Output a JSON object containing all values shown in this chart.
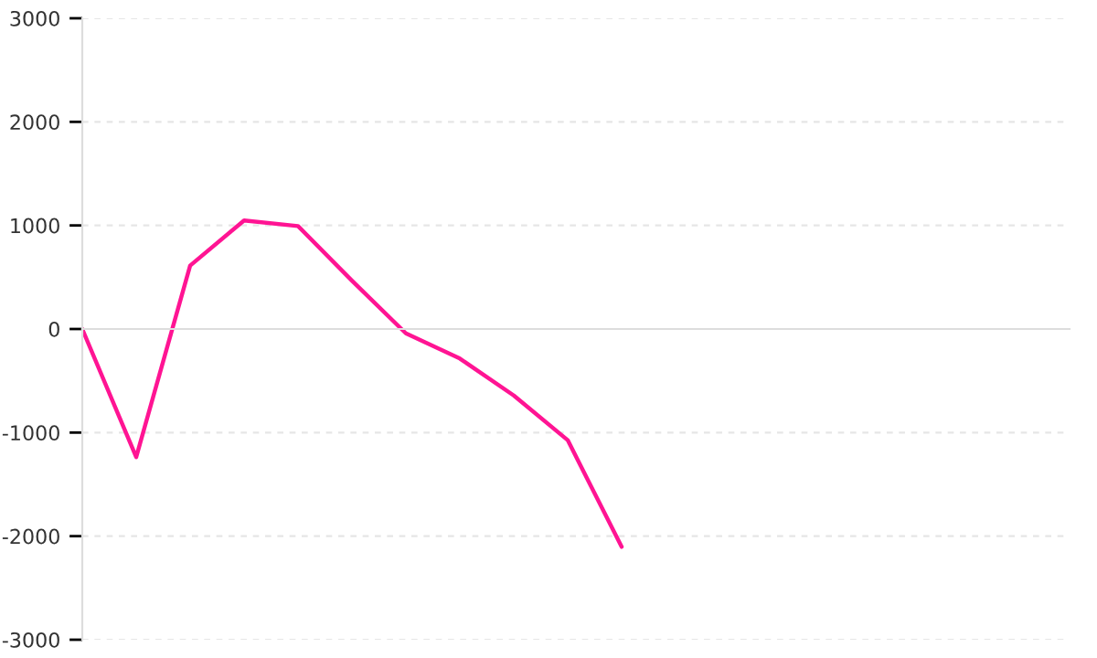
{
  "chart_data": {
    "type": "line",
    "categories": [
      null,
      null,
      null,
      null,
      null,
      null,
      null,
      null,
      null,
      null,
      null
    ],
    "series": [
      {
        "color": "#ff1493",
        "values": [
          0,
          -1236,
          612,
          1048,
          994,
          467,
          -42,
          -285,
          -642,
          -1073,
          -2103
        ]
      }
    ],
    "ylim": [
      -3000,
      3000
    ],
    "yticks": [
      -3000,
      -2000,
      -1000,
      0,
      1000,
      2000,
      3000
    ],
    "grid": "y",
    "tick_labels": "y",
    "marker": "none",
    "line_style": "solid",
    "legend": false
  }
}
